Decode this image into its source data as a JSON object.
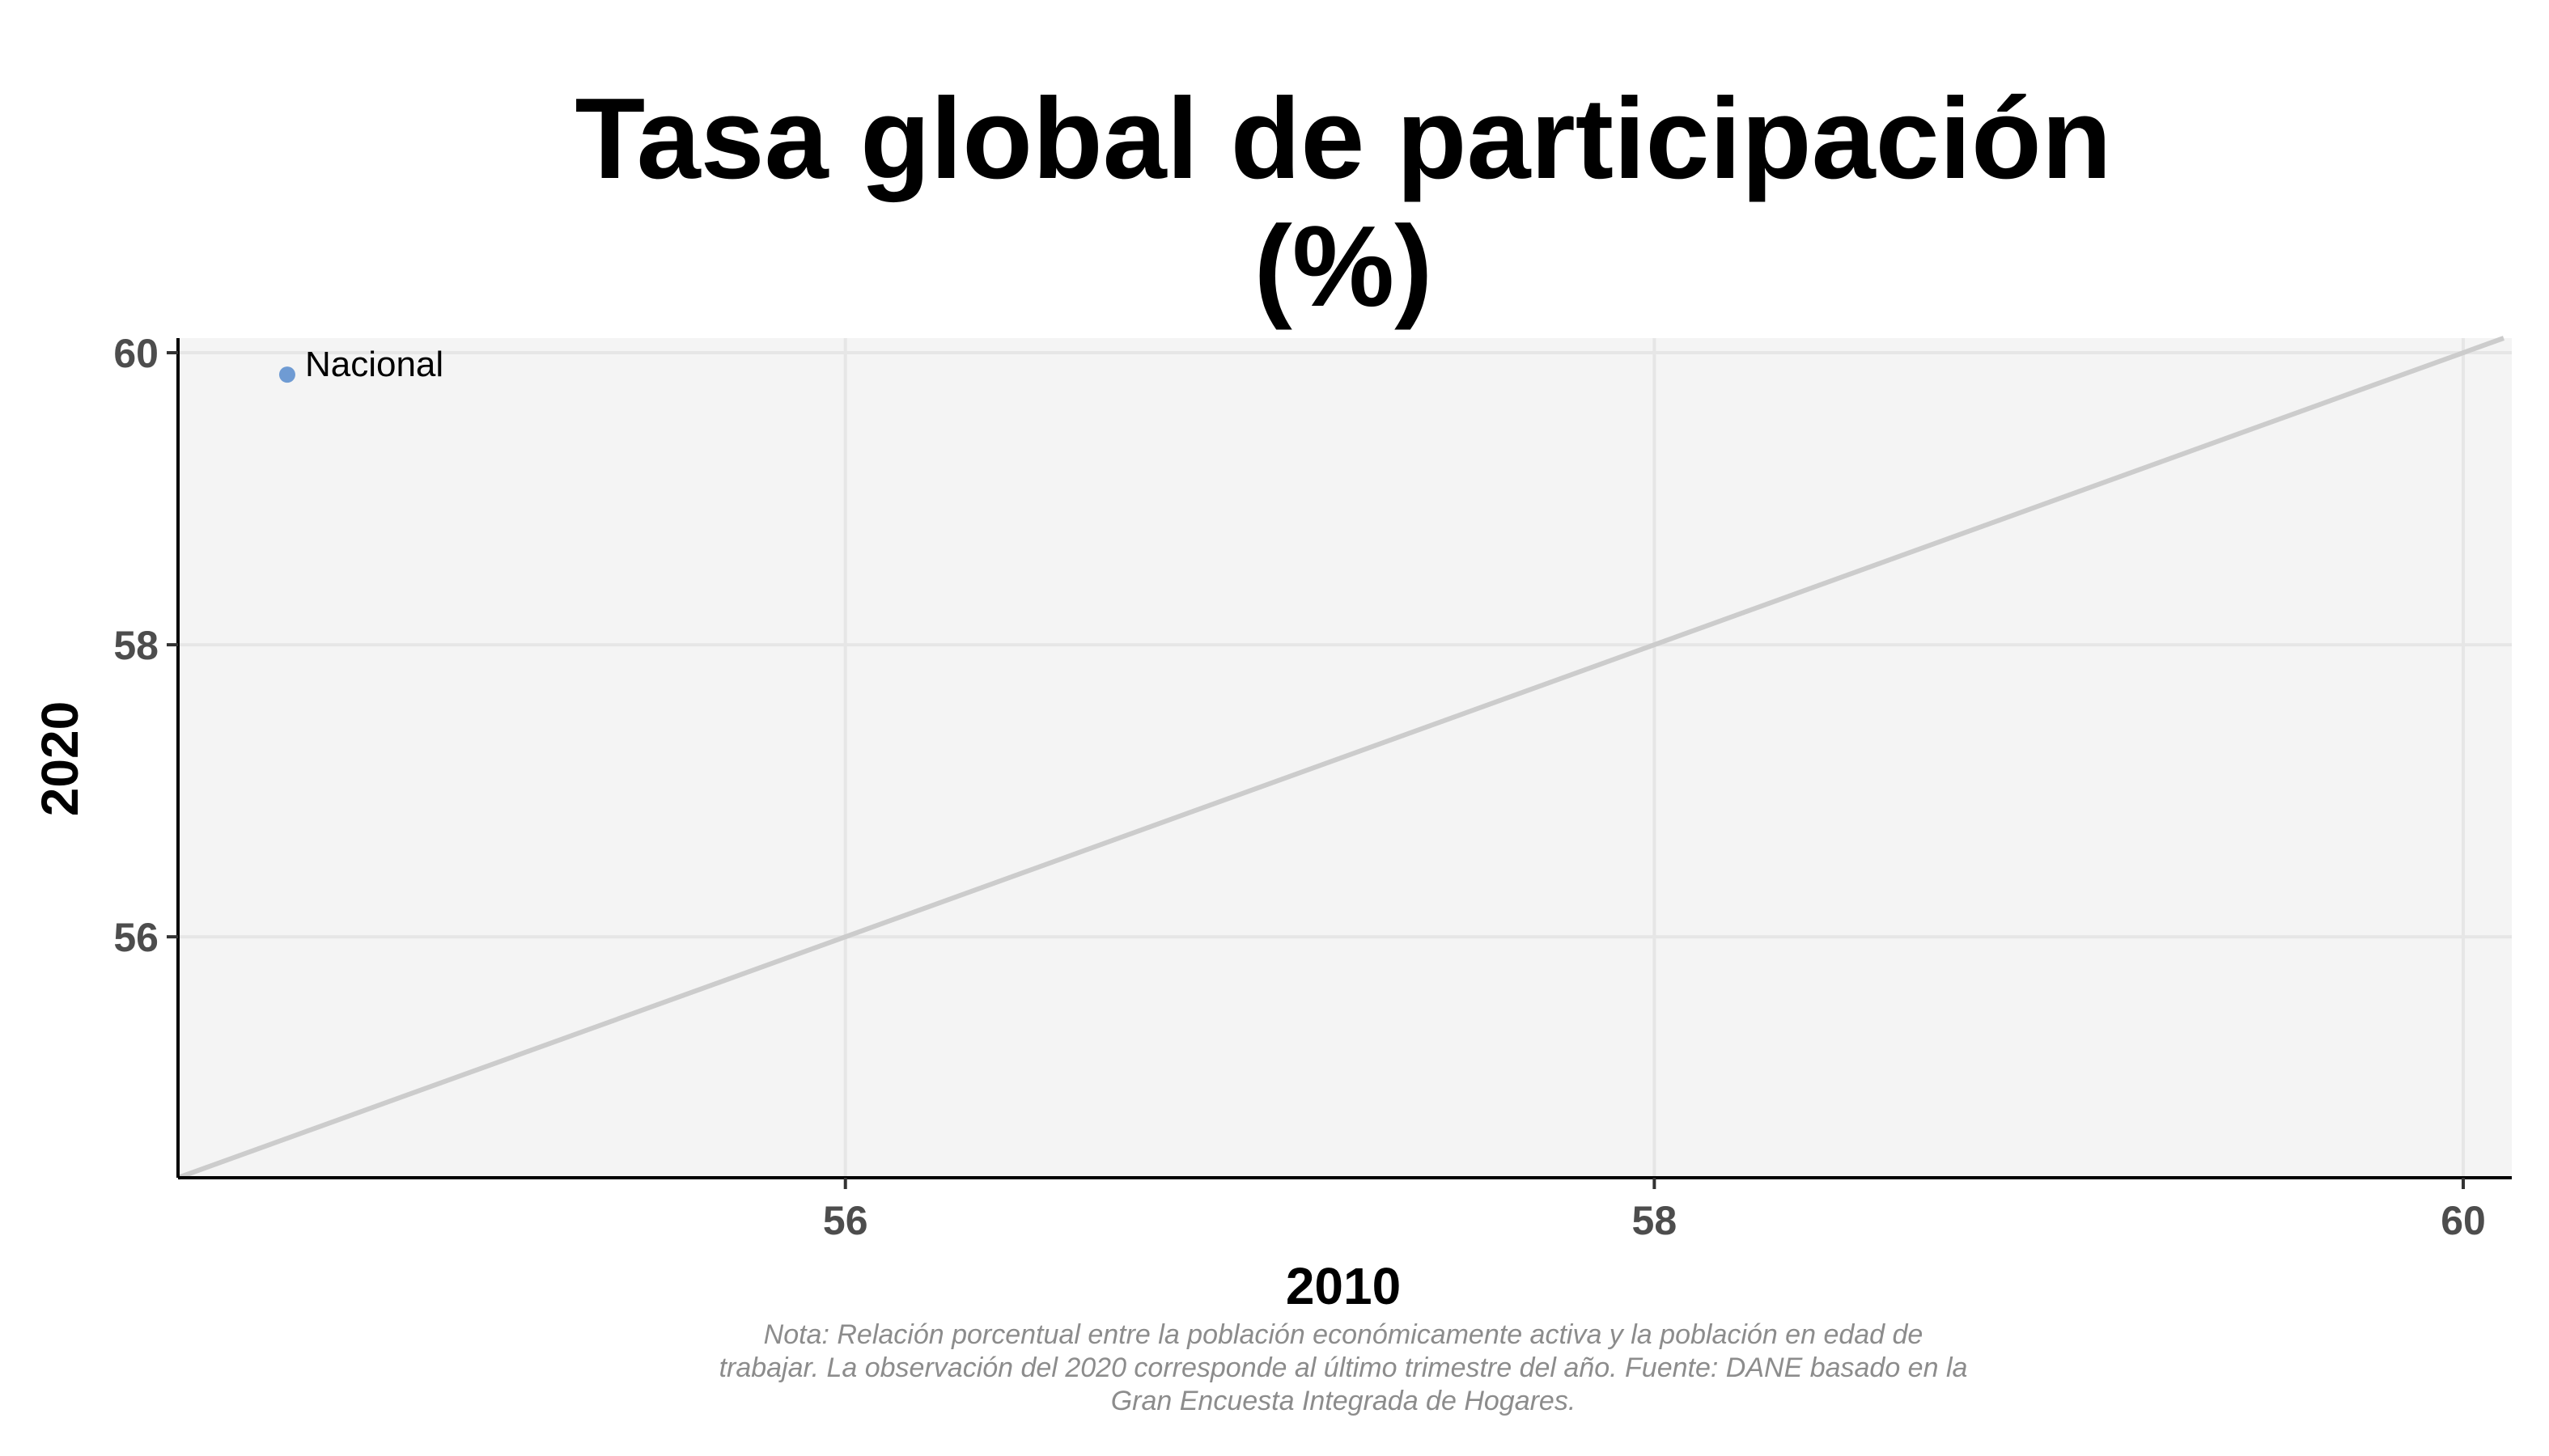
{
  "chart_data": {
    "type": "scatter",
    "title_lines": [
      "Tasa global de participación",
      "(%)"
    ],
    "xlabel": "2010",
    "ylabel": "2020",
    "xlim": [
      54.35,
      60.12
    ],
    "ylim": [
      54.35,
      60.1
    ],
    "x_ticks": [
      56,
      58,
      60
    ],
    "y_ticks": [
      56,
      58,
      60
    ],
    "grid": true,
    "reference_line": "y = x",
    "points": [
      {
        "label": "Nacional",
        "x": 54.62,
        "y": 59.85,
        "color": "#6f9bd3"
      }
    ],
    "caption_lines": [
      "Nota: Relación porcentual entre la población económicamente activa y la población en edad de",
      "trabajar. La observación del 2020 corresponde al último trimestre del año. Fuente: DANE basado en la",
      "Gran Encuesta Integrada de Hogares."
    ]
  },
  "colors": {
    "panel_background": "#f4f4f4",
    "grid": "#e6e6e6",
    "reference_line": "#cccccc",
    "axis_line": "#000000"
  }
}
